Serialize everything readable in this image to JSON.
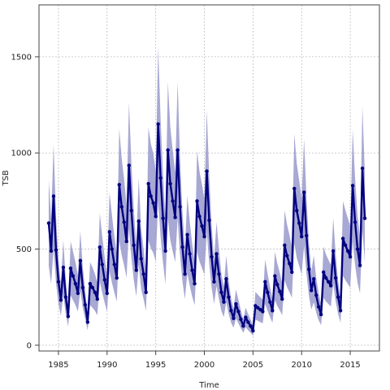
{
  "chart_data": {
    "type": "line",
    "xlabel": "Time",
    "ylabel": "TSB",
    "xlim": [
      1983.0,
      2018.0
    ],
    "ylim": [
      -30,
      1770
    ],
    "x_ticks": [
      1985,
      1990,
      1995,
      2000,
      2005,
      2010,
      2015
    ],
    "y_ticks": [
      0,
      500,
      1000,
      1500
    ],
    "grid": true,
    "colors": {
      "line": "#000080",
      "band": "#9999CC",
      "grid": "#BFBFBF",
      "axis": "#444444"
    },
    "series": [
      {
        "values": [
          [
            1984.0,
            635
          ],
          [
            1984.25,
            490
          ],
          [
            1984.5,
            775
          ],
          [
            1984.75,
            495
          ],
          [
            1985.0,
            330
          ],
          [
            1985.25,
            235
          ],
          [
            1985.5,
            405
          ],
          [
            1985.75,
            250
          ],
          [
            1986.0,
            150
          ],
          [
            1986.25,
            400
          ],
          [
            1986.5,
            360
          ],
          [
            1986.75,
            320
          ],
          [
            1987.0,
            270
          ],
          [
            1987.25,
            440
          ],
          [
            1987.5,
            300
          ],
          [
            1987.75,
            210
          ],
          [
            1988.0,
            120
          ],
          [
            1988.25,
            320
          ],
          [
            1988.5,
            300
          ],
          [
            1988.75,
            275
          ],
          [
            1989.0,
            240
          ],
          [
            1989.25,
            510
          ],
          [
            1989.5,
            420
          ],
          [
            1989.75,
            340
          ],
          [
            1990.0,
            270
          ],
          [
            1990.25,
            590
          ],
          [
            1990.5,
            500
          ],
          [
            1990.75,
            420
          ],
          [
            1991.0,
            350
          ],
          [
            1991.25,
            835
          ],
          [
            1991.5,
            720
          ],
          [
            1991.75,
            640
          ],
          [
            1992.0,
            540
          ],
          [
            1992.25,
            935
          ],
          [
            1992.5,
            700
          ],
          [
            1992.75,
            520
          ],
          [
            1993.0,
            390
          ],
          [
            1993.25,
            645
          ],
          [
            1993.5,
            450
          ],
          [
            1993.75,
            370
          ],
          [
            1994.0,
            275
          ],
          [
            1994.25,
            840
          ],
          [
            1994.5,
            775
          ],
          [
            1994.75,
            740
          ],
          [
            1995.0,
            670
          ],
          [
            1995.25,
            1150
          ],
          [
            1995.5,
            870
          ],
          [
            1995.75,
            660
          ],
          [
            1996.0,
            490
          ],
          [
            1996.25,
            1015
          ],
          [
            1996.5,
            840
          ],
          [
            1996.75,
            750
          ],
          [
            1997.0,
            665
          ],
          [
            1997.25,
            1015
          ],
          [
            1997.5,
            720
          ],
          [
            1997.75,
            510
          ],
          [
            1998.0,
            370
          ],
          [
            1998.25,
            575
          ],
          [
            1998.5,
            475
          ],
          [
            1998.75,
            390
          ],
          [
            1999.0,
            320
          ],
          [
            1999.25,
            750
          ],
          [
            1999.5,
            670
          ],
          [
            1999.75,
            620
          ],
          [
            2000.0,
            565
          ],
          [
            2000.25,
            905
          ],
          [
            2000.5,
            650
          ],
          [
            2000.75,
            460
          ],
          [
            2001.0,
            330
          ],
          [
            2001.25,
            475
          ],
          [
            2001.5,
            370
          ],
          [
            2001.75,
            275
          ],
          [
            2002.0,
            225
          ],
          [
            2002.25,
            345
          ],
          [
            2002.5,
            250
          ],
          [
            2002.75,
            180
          ],
          [
            2003.0,
            140
          ],
          [
            2003.25,
            215
          ],
          [
            2003.5,
            175
          ],
          [
            2003.75,
            135
          ],
          [
            2004.0,
            100
          ],
          [
            2004.25,
            145
          ],
          [
            2004.5,
            120
          ],
          [
            2004.75,
            100
          ],
          [
            2005.0,
            75
          ],
          [
            2005.25,
            205
          ],
          [
            2005.5,
            195
          ],
          [
            2005.75,
            185
          ],
          [
            2006.0,
            175
          ],
          [
            2006.25,
            330
          ],
          [
            2006.5,
            275
          ],
          [
            2006.75,
            225
          ],
          [
            2007.0,
            180
          ],
          [
            2007.25,
            360
          ],
          [
            2007.5,
            315
          ],
          [
            2007.75,
            280
          ],
          [
            2008.0,
            240
          ],
          [
            2008.25,
            520
          ],
          [
            2008.5,
            465
          ],
          [
            2008.75,
            425
          ],
          [
            2009.0,
            380
          ],
          [
            2009.25,
            815
          ],
          [
            2009.5,
            700
          ],
          [
            2009.75,
            635
          ],
          [
            2010.0,
            565
          ],
          [
            2010.25,
            795
          ],
          [
            2010.5,
            570
          ],
          [
            2010.75,
            395
          ],
          [
            2011.0,
            285
          ],
          [
            2011.25,
            345
          ],
          [
            2011.5,
            260
          ],
          [
            2011.75,
            200
          ],
          [
            2012.0,
            160
          ],
          [
            2012.25,
            380
          ],
          [
            2012.5,
            350
          ],
          [
            2012.75,
            330
          ],
          [
            2013.0,
            310
          ],
          [
            2013.25,
            490
          ],
          [
            2013.5,
            350
          ],
          [
            2013.75,
            250
          ],
          [
            2014.0,
            180
          ],
          [
            2014.25,
            555
          ],
          [
            2014.5,
            520
          ],
          [
            2014.75,
            490
          ],
          [
            2015.0,
            460
          ],
          [
            2015.25,
            830
          ],
          [
            2015.5,
            640
          ],
          [
            2015.75,
            500
          ],
          [
            2016.0,
            415
          ],
          [
            2016.25,
            920
          ],
          [
            2016.5,
            660
          ]
        ],
        "ci_width": 0.35
      }
    ]
  }
}
